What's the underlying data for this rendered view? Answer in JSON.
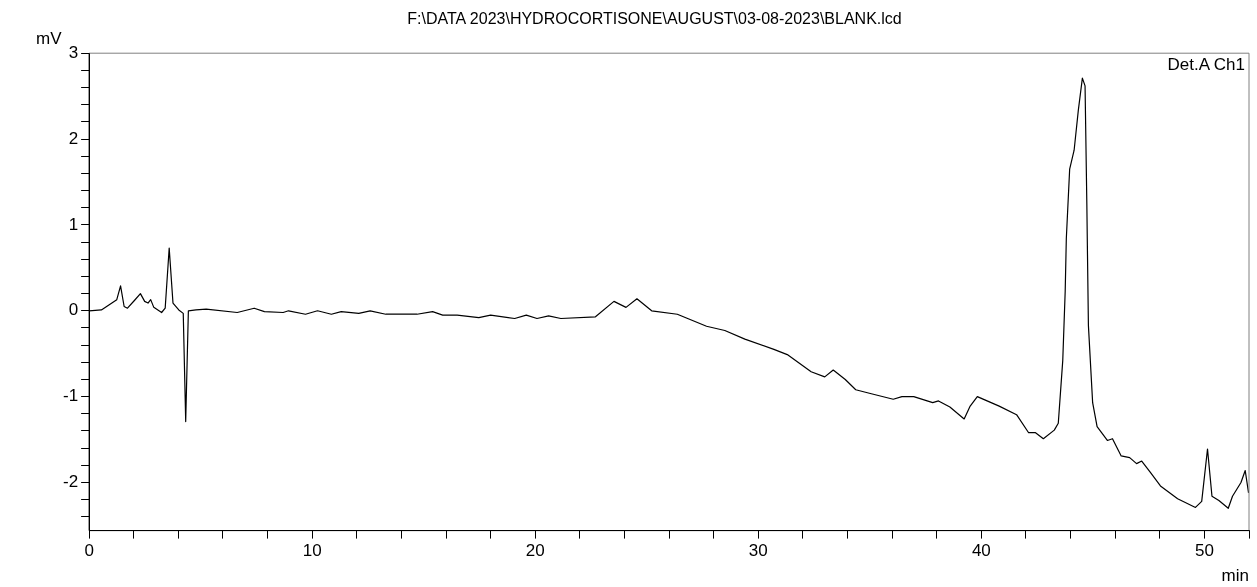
{
  "chart_data": {
    "type": "line",
    "title": "F:\\DATA 2023\\HYDROCORTISONE\\AUGUST\\03-08-2023\\BLANK.lcd",
    "xlabel": "min",
    "ylabel": "mV",
    "annotations": [
      "Det.A Ch1"
    ],
    "series": [
      {
        "color": "#000000",
        "x": [
          0,
          0.55,
          1.24,
          1.41,
          1.57,
          1.72,
          2.03,
          2.3,
          2.49,
          2.64,
          2.76,
          2.9,
          3.25,
          3.41,
          3.59,
          3.76,
          4.02,
          4.22,
          4.33,
          4.45,
          4.79,
          5.25,
          6.64,
          7.4,
          7.86,
          8.7,
          8.94,
          9.7,
          10.24,
          10.86,
          11.3,
          12.09,
          12.6,
          13.3,
          14.7,
          15.4,
          15.85,
          16.5,
          17.47,
          18,
          19.08,
          19.6,
          20.08,
          20.6,
          21.15,
          22.7,
          23.53,
          24.07,
          24.56,
          25.22,
          26.37,
          27.68,
          28.5,
          29.4,
          30.7,
          31.3,
          32.37,
          32.98,
          33.36,
          33.9,
          34.37,
          34.98,
          36.05,
          36.44,
          36.97,
          37.82,
          38.08,
          38.59,
          39.23,
          39.5,
          39.82,
          40.8,
          41.58,
          42.12,
          42.43,
          42.78,
          43.27,
          43.45,
          43.65,
          43.76,
          43.81,
          43.96,
          44.16,
          44.35,
          44.53,
          44.65,
          44.73,
          44.8,
          44.99,
          45.19,
          45.65,
          45.88,
          46.27,
          46.65,
          46.96,
          47.19,
          47.57,
          48.03,
          48.8,
          49.6,
          49.88,
          50.14,
          50.34,
          50.65,
          51.07,
          51.26,
          51.64,
          51.83,
          51.98
        ],
        "values": [
          0,
          0.01,
          0.13,
          0.29,
          0.05,
          0.03,
          0.12,
          0.2,
          0.11,
          0.09,
          0.13,
          0.04,
          -0.02,
          0.03,
          0.73,
          0.09,
          0.01,
          -0.03,
          -1.29,
          0,
          0.01,
          0.02,
          -0.02,
          0.03,
          -0.01,
          -0.02,
          0,
          -0.04,
          0,
          -0.04,
          -0.01,
          -0.03,
          0,
          -0.04,
          -0.04,
          -0.01,
          -0.05,
          -0.05,
          -0.08,
          -0.05,
          -0.09,
          -0.05,
          -0.09,
          -0.06,
          -0.09,
          -0.07,
          0.11,
          0.04,
          0.14,
          0,
          -0.04,
          -0.18,
          -0.23,
          -0.33,
          -0.45,
          -0.51,
          -0.71,
          -0.77,
          -0.69,
          -0.8,
          -0.92,
          -0.96,
          -1.03,
          -1,
          -1,
          -1.07,
          -1.05,
          -1.12,
          -1.26,
          -1.11,
          -1,
          -1.11,
          -1.21,
          -1.42,
          -1.42,
          -1.49,
          -1.39,
          -1.31,
          -0.58,
          0.23,
          0.84,
          1.65,
          1.87,
          2.34,
          2.71,
          2.62,
          1.24,
          -0.17,
          -1.07,
          -1.35,
          -1.51,
          -1.49,
          -1.69,
          -1.71,
          -1.78,
          -1.75,
          -1.88,
          -2.04,
          -2.19,
          -2.29,
          -2.22,
          -1.61,
          -2.16,
          -2.21,
          -2.3,
          -2.16,
          -2,
          -1.86,
          -2.12
        ]
      }
    ],
    "xlim": [
      0,
      52
    ],
    "xticks": [
      0,
      {
        "value": 2,
        "label": null
      },
      {
        "value": 4,
        "label": null
      },
      {
        "value": 6,
        "label": null
      },
      {
        "value": 8,
        "label": null
      },
      10,
      {
        "value": 12,
        "label": null
      },
      {
        "value": 14,
        "label": null
      },
      {
        "value": 16,
        "label": null
      },
      {
        "value": 18,
        "label": null
      },
      20,
      {
        "value": 22,
        "label": null
      },
      {
        "value": 24,
        "label": null
      },
      {
        "value": 26,
        "label": null
      },
      {
        "value": 28,
        "label": null
      },
      30,
      {
        "value": 32,
        "label": null
      },
      {
        "value": 34,
        "label": null
      },
      {
        "value": 36,
        "label": null
      },
      {
        "value": 38,
        "label": null
      },
      40,
      {
        "value": 42,
        "label": null
      },
      {
        "value": 44,
        "label": null
      },
      {
        "value": 46,
        "label": null
      },
      {
        "value": 48,
        "label": null
      },
      50,
      {
        "value": 52,
        "label": null
      }
    ],
    "ylim": [
      -2.56,
      3
    ],
    "yticks": [
      {
        "value": -2.4,
        "label": null
      },
      {
        "value": -2.2,
        "label": null
      },
      -2,
      {
        "value": -1.8,
        "label": null
      },
      {
        "value": -1.6,
        "label": null
      },
      {
        "value": -1.4,
        "label": null
      },
      {
        "value": -1.2,
        "label": null
      },
      -1,
      {
        "value": -0.8,
        "label": null
      },
      {
        "value": -0.6,
        "label": null
      },
      {
        "value": -0.4,
        "label": null
      },
      {
        "value": -0.2,
        "label": null
      },
      0,
      {
        "value": 0.2,
        "label": null
      },
      {
        "value": 0.4,
        "label": null
      },
      {
        "value": 0.6,
        "label": null
      },
      {
        "value": 0.8,
        "label": null
      },
      1,
      {
        "value": 1.2,
        "label": null
      },
      {
        "value": 1.4,
        "label": null
      },
      {
        "value": 1.6,
        "label": null
      },
      {
        "value": 1.8,
        "label": null
      },
      2,
      {
        "value": 2.2,
        "label": null
      },
      {
        "value": 2.4,
        "label": null
      },
      {
        "value": 2.6,
        "label": null
      },
      {
        "value": 2.8,
        "label": null
      },
      3
    ],
    "grid": false,
    "legend": false,
    "marker": "none",
    "line_style": "solid"
  }
}
